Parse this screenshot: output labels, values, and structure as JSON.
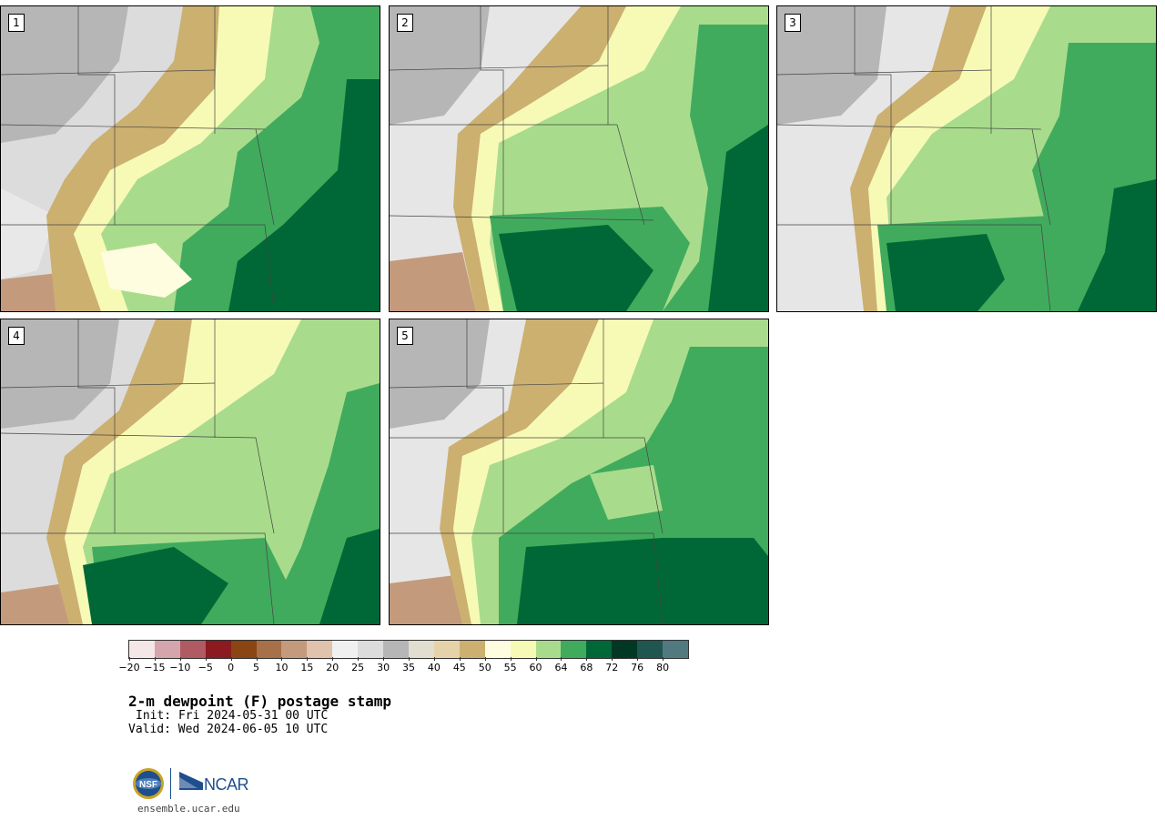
{
  "panels": [
    {
      "label": "1"
    },
    {
      "label": "2"
    },
    {
      "label": "3"
    },
    {
      "label": "4"
    },
    {
      "label": "5"
    }
  ],
  "colorbar": {
    "colors": [
      "#f5e6e8",
      "#d4a5ad",
      "#b05a63",
      "#8b1a21",
      "#8b4513",
      "#a87049",
      "#c49a7d",
      "#e0c2ad",
      "#f0f0f0",
      "#dcdcdc",
      "#b6b6b6",
      "#e1ded0",
      "#e5d2a8",
      "#ccb070",
      "#fffde0",
      "#f7fab5",
      "#a8dc8c",
      "#41ab5d",
      "#006837",
      "#003824",
      "#1f5650",
      "#517a80"
    ],
    "ticks": [
      "−20",
      "−15",
      "−10",
      "−5",
      "0",
      "5",
      "10",
      "15",
      "20",
      "25",
      "30",
      "35",
      "40",
      "45",
      "50",
      "55",
      "60",
      "64",
      "68",
      "72",
      "76",
      "80"
    ]
  },
  "title": "2-m dewpoint (F) postage stamp",
  "init": "Init: Fri 2024-05-31 00 UTC",
  "valid": "Valid: Wed 2024-06-05 10 UTC",
  "logos": {
    "nsf": "NSF",
    "ncar": "NCAR"
  },
  "footer": {
    "site": "ensemble.ucar.edu"
  }
}
